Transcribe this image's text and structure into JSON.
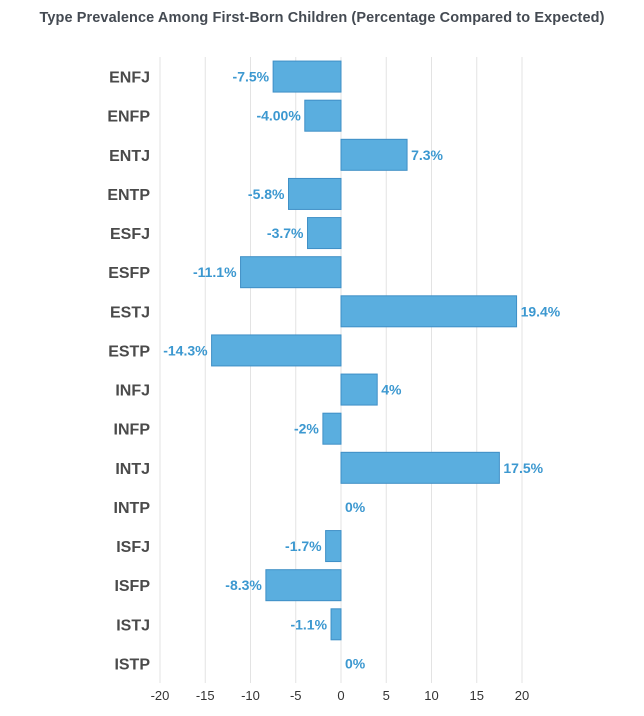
{
  "chart_data": {
    "type": "bar",
    "orientation": "horizontal",
    "title": "Type Prevalence Among First-Born Children (Percentage Compared to Expected)",
    "categories": [
      "ENFJ",
      "ENFP",
      "ENTJ",
      "ENTP",
      "ESFJ",
      "ESFP",
      "ESTJ",
      "ESTP",
      "INFJ",
      "INFP",
      "INTJ",
      "INTP",
      "ISFJ",
      "ISFP",
      "ISTJ",
      "ISTP"
    ],
    "values": [
      -7.5,
      -4.0,
      7.3,
      -5.8,
      -3.7,
      -11.1,
      19.4,
      -14.3,
      4,
      -2,
      17.5,
      0,
      -1.7,
      -8.3,
      -1.1,
      0
    ],
    "data_labels": [
      "-7.5%",
      "-4.00%",
      "7.3%",
      "-5.8%",
      "-3.7%",
      "-11.1%",
      "19.4%",
      "-14.3%",
      "4%",
      "-2%",
      "17.5%",
      "0%",
      "-1.7%",
      "-8.3%",
      "-1.1%",
      "0%"
    ],
    "xlim": [
      -20,
      20
    ],
    "xticks": [
      -20,
      -15,
      -10,
      -5,
      0,
      5,
      10,
      15,
      20
    ],
    "grid": true,
    "xlabel": "",
    "ylabel": "",
    "bar_color": "#5aaedf",
    "bar_edge_color": "#3f8fc6",
    "label_color": "#3c98d0",
    "grid_color": "#e3e3e3"
  }
}
